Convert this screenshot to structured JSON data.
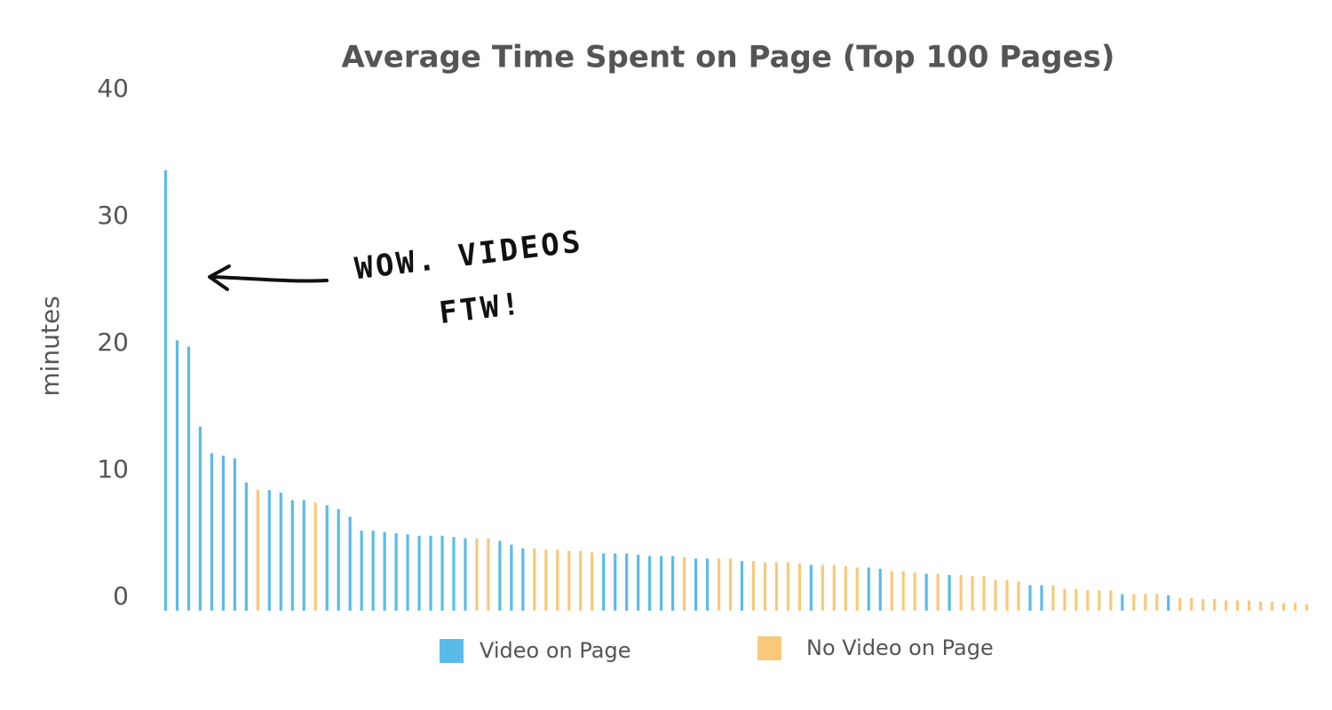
{
  "chart_data": {
    "type": "bar",
    "title": "Average Time Spent on Page (Top 100 Pages)",
    "y_label": "minutes",
    "annotation": [
      "WOW. VIDEOS",
      "FTW!"
    ],
    "ylim": [
      0,
      40
    ],
    "yticks": [
      0,
      10,
      20,
      30,
      40
    ],
    "grid": false,
    "series": [
      {
        "name": "Video on Page",
        "color": "#5bbbe8",
        "values": [
          34.7,
          21.3,
          20.8,
          14.5,
          12.4,
          12.2,
          12.0,
          10.1,
          null,
          9.5,
          9.3,
          8.7,
          8.7,
          null,
          8.3,
          8.0,
          7.4,
          6.3,
          6.3,
          6.2,
          6.1,
          6.0,
          5.9,
          5.9,
          5.9,
          5.8,
          5.7,
          null,
          null,
          5.5,
          5.2,
          4.9,
          null,
          null,
          null,
          null,
          null,
          null,
          4.5,
          4.5,
          4.5,
          4.4,
          4.3,
          4.3,
          4.3,
          null,
          4.1,
          4.1,
          null,
          null,
          3.9,
          null,
          null,
          null,
          null,
          null,
          3.6,
          null,
          null,
          null,
          null,
          3.4,
          3.3,
          null,
          null,
          null,
          2.9,
          null,
          2.8,
          null,
          null,
          null,
          null,
          null,
          null,
          2.0,
          2.0,
          null,
          null,
          null,
          null,
          null,
          null,
          1.3,
          null,
          null,
          null,
          1.2,
          null,
          null,
          null,
          null,
          null,
          null,
          null,
          null,
          null,
          null,
          null,
          null
        ]
      },
      {
        "name": "No Video on Page",
        "color": "#f8c97a",
        "values": [
          null,
          null,
          null,
          null,
          null,
          null,
          null,
          null,
          9.5,
          null,
          null,
          null,
          null,
          8.5,
          null,
          null,
          null,
          null,
          null,
          null,
          null,
          null,
          null,
          null,
          null,
          null,
          null,
          5.7,
          5.7,
          null,
          null,
          null,
          4.9,
          4.8,
          4.8,
          4.7,
          4.7,
          4.6,
          null,
          null,
          null,
          null,
          null,
          null,
          null,
          4.2,
          null,
          null,
          4.1,
          4.1,
          null,
          3.9,
          3.8,
          3.8,
          3.8,
          3.7,
          null,
          3.6,
          3.6,
          3.5,
          3.4,
          null,
          null,
          3.1,
          3.1,
          3.0,
          null,
          2.9,
          null,
          2.8,
          2.7,
          2.7,
          2.4,
          2.4,
          2.3,
          null,
          null,
          2.0,
          1.7,
          1.7,
          1.6,
          1.6,
          1.6,
          null,
          1.3,
          1.3,
          1.3,
          null,
          1.0,
          1.0,
          0.9,
          0.9,
          0.8,
          0.8,
          0.8,
          0.7,
          0.7,
          0.6,
          0.6,
          0.5
        ]
      }
    ]
  }
}
